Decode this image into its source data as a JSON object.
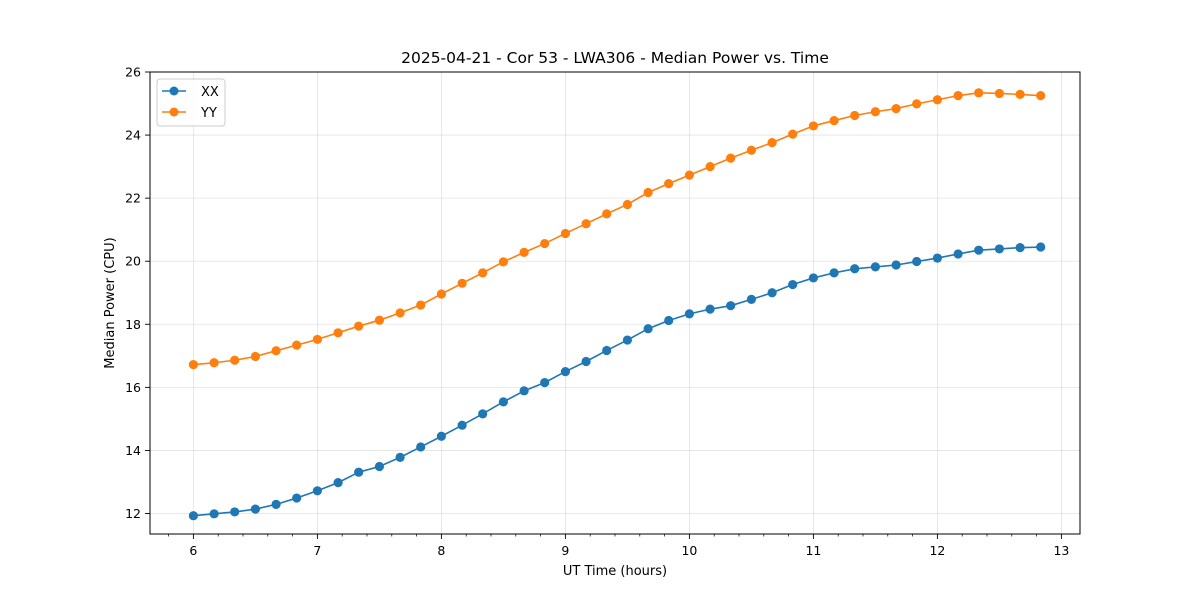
{
  "chart_data": {
    "type": "line",
    "title": "2025-04-21 - Cor 53 - LWA306 - Median Power vs. Time",
    "xlabel": "UT Time (hours)",
    "ylabel": "Median Power (CPU)",
    "xlim": [
      5.65,
      13.15
    ],
    "ylim": [
      11.35,
      26.0
    ],
    "xticks": [
      6,
      7,
      8,
      9,
      10,
      11,
      12,
      13
    ],
    "yticks": [
      12,
      14,
      16,
      18,
      20,
      22,
      24,
      26
    ],
    "grid": true,
    "legend_position": "top-left",
    "x": [
      6.0,
      6.167,
      6.333,
      6.5,
      6.667,
      6.833,
      7.0,
      7.167,
      7.333,
      7.5,
      7.667,
      7.833,
      8.0,
      8.167,
      8.333,
      8.5,
      8.667,
      8.833,
      9.0,
      9.167,
      9.333,
      9.5,
      9.667,
      9.833,
      10.0,
      10.167,
      10.333,
      10.5,
      10.667,
      10.833,
      11.0,
      11.167,
      11.333,
      11.5,
      11.667,
      11.833,
      12.0,
      12.167,
      12.333,
      12.5,
      12.667,
      12.833
    ],
    "series": [
      {
        "name": "XX",
        "color": "#1f77b4",
        "values": [
          11.93,
          11.99,
          12.05,
          12.14,
          12.29,
          12.49,
          12.72,
          12.98,
          13.31,
          13.49,
          13.78,
          14.11,
          14.45,
          14.8,
          15.16,
          15.54,
          15.89,
          16.15,
          16.5,
          16.82,
          17.17,
          17.5,
          17.86,
          18.12,
          18.33,
          18.48,
          18.59,
          18.79,
          19.0,
          19.26,
          19.47,
          19.63,
          19.76,
          19.82,
          19.88,
          19.99,
          20.1,
          20.23,
          20.35,
          20.39,
          20.43,
          20.45
        ]
      },
      {
        "name": "YY",
        "color": "#ff7f0e",
        "values": [
          16.72,
          16.78,
          16.86,
          16.98,
          17.16,
          17.34,
          17.52,
          17.73,
          17.94,
          18.13,
          18.36,
          18.61,
          18.96,
          19.3,
          19.63,
          19.98,
          20.28,
          20.56,
          20.88,
          21.19,
          21.5,
          21.8,
          22.18,
          22.46,
          22.73,
          23.0,
          23.27,
          23.52,
          23.76,
          24.03,
          24.29,
          24.46,
          24.62,
          24.74,
          24.84,
          24.99,
          25.12,
          25.25,
          25.34,
          25.32,
          25.29,
          25.25
        ]
      }
    ]
  }
}
